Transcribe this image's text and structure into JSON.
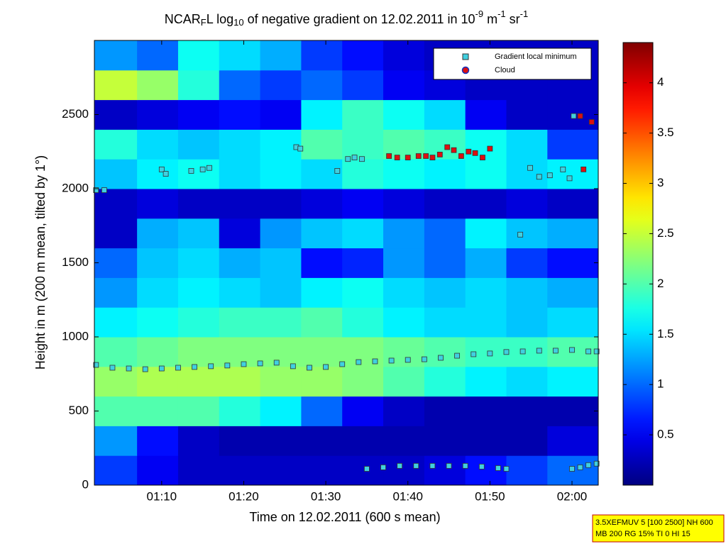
{
  "chart_data": {
    "type": "heatmap",
    "title_parts": [
      {
        "text": "NCAR"
      },
      {
        "text": "F",
        "shift": "sub"
      },
      {
        "text": "L log"
      },
      {
        "text": "10",
        "shift": "sub"
      },
      {
        "text": " of negative gradient on 12.02.2011 in 10"
      },
      {
        "text": "-9",
        "shift": "sup"
      },
      {
        "text": " m"
      },
      {
        "text": "-1",
        "shift": "sup"
      },
      {
        "text": " sr"
      },
      {
        "text": "-1",
        "shift": "sup"
      }
    ],
    "x_label": "Time on 12.02.2011 (600 s mean)",
    "y_label": "Height in m (200 m mean, tilted by 1°)",
    "xlim": [
      61.8,
      123.2
    ],
    "xticks": [
      {
        "value": 70,
        "label": "01:10"
      },
      {
        "value": 80,
        "label": "01:20"
      },
      {
        "value": 90,
        "label": "01:30"
      },
      {
        "value": 100,
        "label": "01:40"
      },
      {
        "value": 110,
        "label": "01:50"
      },
      {
        "value": 120,
        "label": "02:00"
      }
    ],
    "ylim": [
      0,
      3000
    ],
    "yticks": [
      0,
      500,
      1000,
      1500,
      2000,
      2500
    ],
    "colormap": "jet",
    "clim": [
      0,
      4.4
    ],
    "cticks": [
      0.5,
      1,
      1.5,
      2,
      2.5,
      3,
      3.5,
      4
    ],
    "x_edges": [
      61.8,
      67,
      72,
      77,
      82,
      87,
      92,
      97,
      102,
      107,
      112,
      117,
      123.2
    ],
    "y_edges": [
      0,
      200,
      400,
      600,
      800,
      1000,
      1200,
      1400,
      1600,
      1800,
      2000,
      2200,
      2400,
      2600,
      2800,
      3000
    ],
    "z": [
      [
        0.8,
        0.5,
        0.3,
        0.3,
        0.3,
        0.3,
        0.3,
        0.3,
        0.4,
        0.6,
        0.8,
        1.0
      ],
      [
        1.2,
        0.6,
        0.3,
        0.2,
        0.2,
        0.2,
        0.2,
        0.2,
        0.2,
        0.2,
        0.2,
        0.4
      ],
      [
        2.0,
        2.0,
        2.0,
        1.8,
        1.6,
        1.0,
        0.5,
        0.3,
        0.2,
        0.2,
        0.2,
        0.2
      ],
      [
        2.3,
        2.4,
        2.4,
        2.4,
        2.3,
        2.3,
        2.2,
        2.0,
        1.8,
        1.6,
        1.5,
        1.6
      ],
      [
        2.0,
        2.1,
        2.2,
        2.2,
        2.2,
        2.2,
        2.2,
        2.1,
        2.0,
        1.9,
        1.9,
        2.0
      ],
      [
        1.6,
        1.7,
        1.8,
        1.9,
        1.9,
        2.0,
        1.8,
        1.6,
        1.5,
        1.5,
        1.4,
        1.5
      ],
      [
        1.2,
        1.5,
        1.6,
        1.5,
        1.4,
        1.6,
        1.7,
        1.5,
        1.4,
        1.5,
        1.4,
        1.3
      ],
      [
        1.0,
        1.4,
        1.5,
        1.3,
        1.4,
        0.6,
        0.7,
        1.2,
        1.0,
        1.3,
        0.8,
        0.6
      ],
      [
        0.3,
        1.3,
        1.4,
        0.4,
        1.2,
        1.4,
        1.5,
        1.2,
        1.0,
        1.6,
        1.4,
        1.3
      ],
      [
        0.3,
        0.4,
        0.3,
        0.3,
        0.3,
        0.4,
        0.5,
        0.4,
        0.3,
        0.3,
        0.4,
        0.3
      ],
      [
        1.4,
        1.6,
        1.7,
        1.5,
        1.6,
        1.5,
        1.8,
        1.7,
        1.6,
        1.7,
        1.5,
        1.6
      ],
      [
        1.8,
        1.5,
        1.4,
        1.5,
        1.6,
        2.0,
        1.9,
        2.0,
        1.9,
        1.7,
        1.5,
        0.8
      ],
      [
        0.3,
        0.4,
        0.5,
        0.6,
        0.5,
        1.6,
        1.9,
        1.7,
        1.5,
        0.5,
        0.3,
        0.3
      ],
      [
        2.5,
        2.3,
        1.8,
        1.0,
        0.8,
        1.0,
        0.8,
        0.5,
        0.4,
        0.3,
        0.3,
        0.3
      ],
      [
        1.2,
        1.0,
        1.7,
        1.5,
        1.3,
        0.8,
        0.6,
        0.4,
        0.3,
        0.3,
        0.3,
        0.3
      ]
    ],
    "series": [
      {
        "name": "Gradient local minimum",
        "color": "#40d0e0",
        "marker": "square",
        "x": [
          62,
          64,
          66,
          68,
          70,
          72,
          74,
          76,
          78,
          80,
          82,
          84,
          86,
          88,
          90,
          92,
          94,
          96,
          98,
          100,
          102,
          104,
          106,
          108,
          110,
          112,
          114,
          116,
          118,
          120,
          122,
          123,
          95,
          97,
          99,
          101,
          103,
          105,
          107,
          109,
          111,
          112,
          120,
          121,
          122,
          123,
          62,
          63,
          70,
          70.5,
          73.6,
          75,
          75.8,
          86.4,
          86.9,
          91.4,
          92.7,
          93.5,
          94.4,
          113.7,
          114.9,
          116,
          117.3,
          118.9,
          119.7,
          120.2
        ],
        "y": [
          811,
          792,
          787,
          782,
          787,
          792,
          797,
          802,
          807,
          816,
          821,
          826,
          802,
          792,
          797,
          816,
          830,
          835,
          840,
          845,
          849,
          859,
          873,
          883,
          888,
          898,
          902,
          907,
          907,
          912,
          902,
          902,
          110,
          120,
          130,
          130,
          130,
          130,
          130,
          125,
          115,
          110,
          110,
          120,
          135,
          145,
          1990,
          1990,
          2130,
          2100,
          2120,
          2130,
          2140,
          2280,
          2270,
          2120,
          2200,
          2210,
          2200,
          1690,
          2140,
          2080,
          2090,
          2130,
          2070,
          2490
        ]
      },
      {
        "name": "Cloud",
        "color": "#dd1010",
        "marker": "circle",
        "x": [
          97.7,
          98.7,
          100,
          101.3,
          102.2,
          103,
          103.9,
          104.8,
          105.6,
          106.5,
          107.4,
          108.2,
          109.1,
          110,
          121,
          121.4,
          122.4
        ],
        "y": [
          2220,
          2210,
          2210,
          2220,
          2220,
          2210,
          2230,
          2280,
          2260,
          2220,
          2250,
          2240,
          2210,
          2270,
          2490,
          2130,
          2450
        ]
      }
    ],
    "info_box": [
      "3.5XEFMUV 5 [100 2500] NH 600",
      "MB 200 RG 15% TI 0 HI 15"
    ]
  }
}
